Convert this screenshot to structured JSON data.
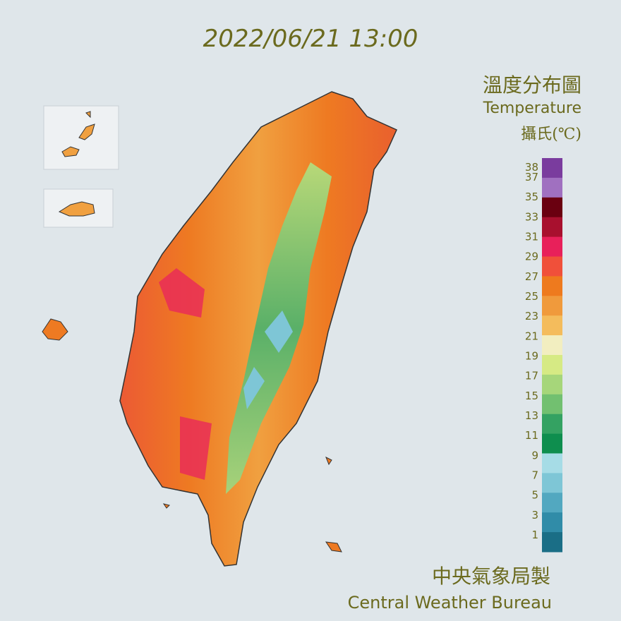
{
  "header": {
    "timestamp": "2022/06/21 13:00"
  },
  "legend": {
    "title": "溫度分布圖",
    "subtitle": "Temperature",
    "unit": "攝氏(℃)",
    "ticks": [
      38,
      37,
      35,
      33,
      31,
      29,
      27,
      25,
      23,
      21,
      19,
      17,
      15,
      13,
      11,
      9,
      7,
      5,
      3,
      1
    ],
    "colors": [
      "#7a3c9e",
      "#a070c0",
      "#6a0010",
      "#a8102e",
      "#e8205a",
      "#f0503a",
      "#ee7a1e",
      "#f09a3c",
      "#f4bc5c",
      "#f2eec0",
      "#d6ea84",
      "#a6d67a",
      "#72c070",
      "#34a262",
      "#0e8e4e",
      "#a6dce6",
      "#7ec6d6",
      "#52a8c0",
      "#308ca8",
      "#1a6e86"
    ]
  },
  "footer": {
    "agency": "中央氣象局製",
    "agency_en": "Central Weather Bureau"
  }
}
